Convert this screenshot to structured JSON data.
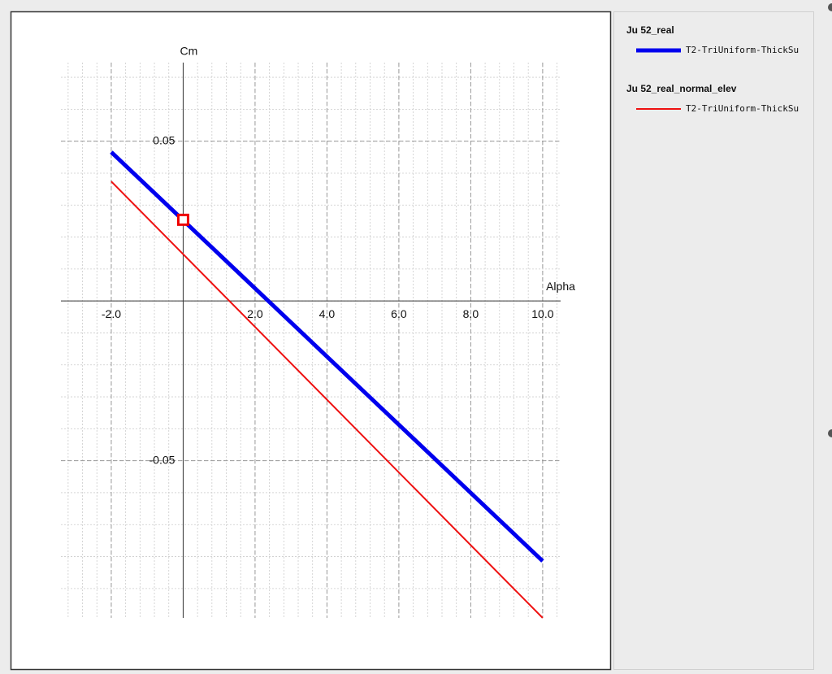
{
  "chart_data": {
    "type": "line",
    "x_label": "Alpha",
    "y_label": "Cm",
    "xlim": [
      -3.4,
      10.5
    ],
    "ylim": [
      -0.0992,
      0.0746
    ],
    "xticks": [
      {
        "value": -2,
        "label": "-2.0"
      },
      {
        "value": 2,
        "label": "2.0"
      },
      {
        "value": 4,
        "label": "4.0"
      },
      {
        "value": 6,
        "label": "6.0"
      },
      {
        "value": 8,
        "label": "8.0"
      },
      {
        "value": 10,
        "label": "10.0"
      }
    ],
    "yticks": [
      0.05,
      -0.05
    ],
    "grid": true,
    "x_minor_step": 0.4,
    "y_minor_step": 0.01,
    "series": [
      {
        "name": "Ju 52_real",
        "label": "T2-TriUniform-ThickSu",
        "color": "#0000ee",
        "width": 5,
        "x": [
          -2,
          10
        ],
        "values": [
          0.0466,
          -0.0814
        ]
      },
      {
        "name": "Ju 52_real_normal_elev",
        "label": "T2-TriUniform-ThickSu",
        "color": "#ee1111",
        "width": 2,
        "x": [
          -2,
          10
        ],
        "values": [
          0.0374,
          -0.0992
        ]
      }
    ],
    "highlight_point": {
      "x": 0,
      "y": 0.0254,
      "color": "#ee0000"
    }
  }
}
